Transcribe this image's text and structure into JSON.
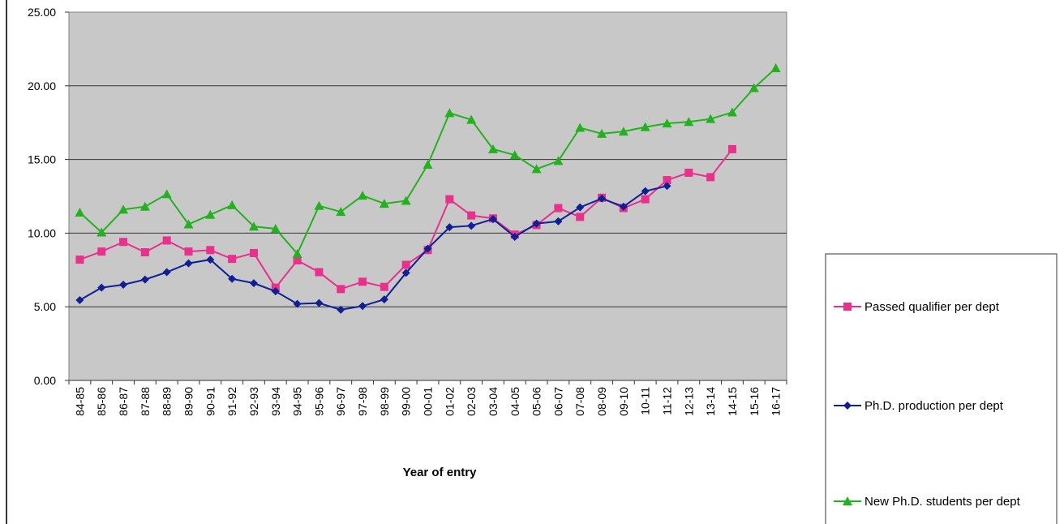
{
  "chart_data": {
    "type": "line",
    "title": "",
    "xlabel": "Year of entry",
    "ylabel": "",
    "ylim": [
      0,
      25
    ],
    "yticks": [
      "0.00",
      "5.00",
      "10.00",
      "15.00",
      "20.00",
      "25.00"
    ],
    "grid": true,
    "legend_position": "right",
    "categories": [
      "84-85",
      "85-86",
      "86-87",
      "87-88",
      "88-89",
      "89-90",
      "90-91",
      "91-92",
      "92-93",
      "93-94",
      "94-95",
      "95-96",
      "96-97",
      "97-98",
      "98-99",
      "99-00",
      "00-01",
      "01-02",
      "02-03",
      "03-04",
      "04-05",
      "05-06",
      "06-07",
      "07-08",
      "08-09",
      "09-10",
      "10-11",
      "11-12",
      "12-13",
      "13-14",
      "14-15",
      "15-16",
      "16-17"
    ],
    "series": [
      {
        "name": "Passed qualifier per dept",
        "color": "#e8308c",
        "marker": "square",
        "values": [
          8.2,
          8.75,
          9.4,
          8.7,
          9.5,
          8.75,
          8.85,
          8.25,
          8.65,
          6.3,
          8.15,
          7.35,
          6.2,
          6.7,
          6.35,
          7.85,
          8.85,
          12.3,
          11.2,
          11.0,
          9.9,
          10.55,
          11.7,
          11.1,
          12.4,
          11.7,
          12.3,
          13.6,
          14.1,
          13.8,
          15.7,
          null,
          null
        ]
      },
      {
        "name": "Ph.D. production per dept",
        "color": "#0f1f96",
        "marker": "diamond",
        "values": [
          5.45,
          6.3,
          6.5,
          6.85,
          7.35,
          7.95,
          8.2,
          6.9,
          6.6,
          6.05,
          5.2,
          5.25,
          4.8,
          5.05,
          5.5,
          7.3,
          8.95,
          10.4,
          10.5,
          10.95,
          9.75,
          10.65,
          10.8,
          11.75,
          12.35,
          11.8,
          12.85,
          13.2,
          null,
          null,
          null,
          null,
          null
        ]
      },
      {
        "name": "New Ph.D. students per dept",
        "color": "#22b21e",
        "marker": "triangle",
        "values": [
          11.4,
          10.05,
          11.6,
          11.8,
          12.65,
          10.6,
          11.25,
          11.9,
          10.45,
          10.3,
          8.6,
          11.85,
          11.45,
          12.55,
          12.0,
          12.2,
          14.65,
          18.15,
          17.7,
          15.7,
          15.3,
          14.35,
          14.9,
          17.15,
          16.75,
          16.9,
          17.2,
          17.45,
          17.55,
          17.75,
          18.2,
          19.85,
          21.2
        ]
      }
    ]
  }
}
